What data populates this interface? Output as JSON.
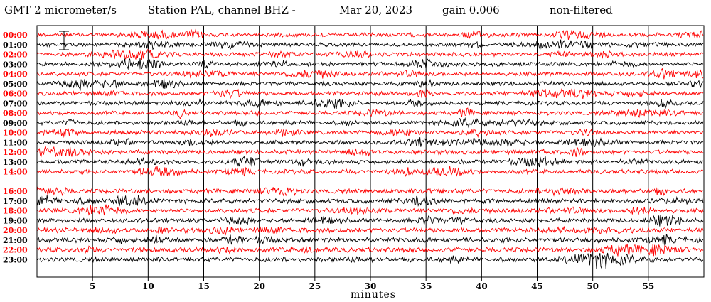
{
  "header": {
    "units": "GMT 2 micrometer/s",
    "station": "Station PAL, channel BHZ -",
    "date": "Mar 20, 2023",
    "gain": "gain 0.006",
    "filter": "non-filtered"
  },
  "chart_data": {
    "type": "line",
    "title": "GMT 2 micrometer/s Station PAL, channel BHZ - Mar 20, 2023 gain 0.006 non-filtered",
    "xlabel": "minutes",
    "ylabel": "",
    "xlim": [
      0,
      60
    ],
    "x_ticks": [
      5,
      10,
      15,
      20,
      25,
      30,
      35,
      40,
      45,
      50,
      55
    ],
    "x_tick_labels": [
      "5",
      "10",
      "15",
      "20",
      "25",
      "30",
      "35",
      "40",
      "45",
      "50",
      "55"
    ],
    "grid": true,
    "series_colors": {
      "even": "#ff0000",
      "odd": "#000000"
    },
    "rows": [
      {
        "label": "00:00",
        "color": "#ff0000",
        "amplitude": 0.9
      },
      {
        "label": "01:00",
        "color": "#000000",
        "amplitude": 0.9
      },
      {
        "label": "02:00",
        "color": "#ff0000",
        "amplitude": 0.9
      },
      {
        "label": "03:00",
        "color": "#000000",
        "amplitude": 0.9
      },
      {
        "label": "04:00",
        "color": "#ff0000",
        "amplitude": 0.9
      },
      {
        "label": "05:00",
        "color": "#000000",
        "amplitude": 0.9
      },
      {
        "label": "06:00",
        "color": "#ff0000",
        "amplitude": 0.9
      },
      {
        "label": "07:00",
        "color": "#000000",
        "amplitude": 0.9
      },
      {
        "label": "08:00",
        "color": "#ff0000",
        "amplitude": 0.9
      },
      {
        "label": "09:00",
        "color": "#000000",
        "amplitude": 0.9
      },
      {
        "label": "10:00",
        "color": "#ff0000",
        "amplitude": 0.9
      },
      {
        "label": "11:00",
        "color": "#000000",
        "amplitude": 0.9
      },
      {
        "label": "12:00",
        "color": "#ff0000",
        "amplitude": 1.0
      },
      {
        "label": "13:00",
        "color": "#000000",
        "amplitude": 1.0
      },
      {
        "label": "14:00",
        "color": "#ff0000",
        "amplitude": 1.0
      },
      {
        "label": "",
        "color": "#000000",
        "amplitude": 0
      },
      {
        "label": "16:00",
        "color": "#ff0000",
        "amplitude": 1.0
      },
      {
        "label": "17:00",
        "color": "#000000",
        "amplitude": 1.0
      },
      {
        "label": "18:00",
        "color": "#ff0000",
        "amplitude": 1.0
      },
      {
        "label": "19:00",
        "color": "#000000",
        "amplitude": 1.0
      },
      {
        "label": "20:00",
        "color": "#ff0000",
        "amplitude": 1.1
      },
      {
        "label": "21:00",
        "color": "#000000",
        "amplitude": 1.1
      },
      {
        "label": "22:00",
        "color": "#ff0000",
        "amplitude": 1.1
      },
      {
        "label": "23:00",
        "color": "#000000",
        "amplitude": 1.1
      }
    ]
  }
}
